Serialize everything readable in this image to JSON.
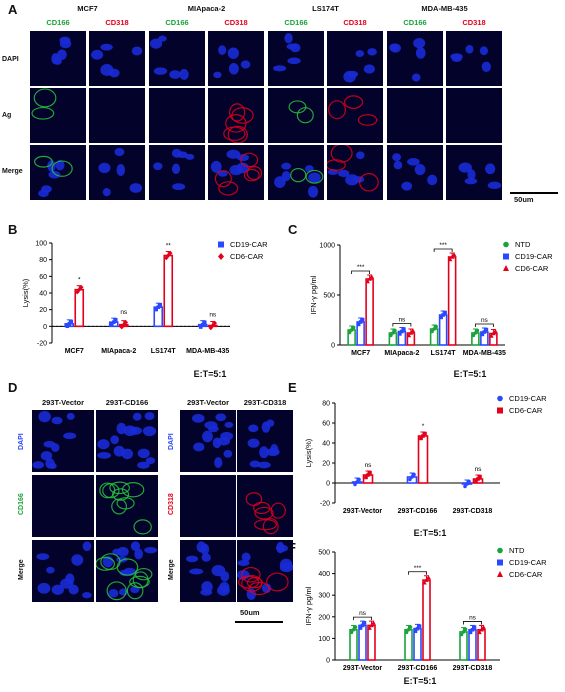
{
  "panel_labels": {
    "A": "A",
    "B": "B",
    "C": "C",
    "D": "D",
    "E": "E",
    "F": "F"
  },
  "panelA": {
    "cell_lines": [
      "MCF7",
      "MIApaca-2",
      "LS174T",
      "MDA-MB-435"
    ],
    "markers": [
      "CD166",
      "CD318"
    ],
    "rows": [
      "DAPI",
      "Ag",
      "Merge"
    ],
    "scale_bar": "50um"
  },
  "panelD": {
    "left_cols": [
      "293T-Vector",
      "293T-CD166"
    ],
    "right_cols": [
      "293T-Vector",
      "293T-CD318"
    ],
    "left_rows": [
      "DAPI",
      "CD166",
      "Merge"
    ],
    "right_rows": [
      "DAPI",
      "CD318",
      "Merge"
    ],
    "scale_bar": "50um"
  },
  "colors": {
    "green": "#1aa33a",
    "red": "#e3001b",
    "blue": "#2a48ff",
    "dapi": "#1a2bd6"
  },
  "chart_data": [
    {
      "id": "B",
      "type": "bar",
      "ylabel": "Lysis(%)",
      "ylim": [
        -20,
        100
      ],
      "yticks": [
        "-20",
        "0",
        "20",
        "40",
        "60",
        "80",
        "100"
      ],
      "categories": [
        "MCF7",
        "MIApaca-2",
        "LS174T",
        "MDA-MB-435"
      ],
      "series": [
        {
          "name": "CD19-CAR",
          "values": [
            3,
            5,
            23,
            2
          ]
        },
        {
          "name": "CD6-CAR",
          "values": [
            44,
            2,
            85,
            1
          ]
        }
      ],
      "annotations": [
        "*",
        "ns",
        "**",
        "ns"
      ],
      "footer": "E:T=5:1"
    },
    {
      "id": "C",
      "type": "bar",
      "ylabel": "IFN-γ pg/ml",
      "ylim": [
        0,
        1000
      ],
      "yticks": [
        "0",
        "500",
        "1000"
      ],
      "categories": [
        "MCF7",
        "MIApaca-2",
        "LS174T",
        "MDA-MB-435"
      ],
      "series": [
        {
          "name": "NTD",
          "values": [
            150,
            120,
            160,
            120
          ]
        },
        {
          "name": "CD19-CAR",
          "values": [
            230,
            135,
            300,
            130
          ]
        },
        {
          "name": "CD6-CAR",
          "values": [
            660,
            120,
            880,
            115
          ]
        }
      ],
      "annotations": [
        "***",
        "ns",
        "***",
        "ns"
      ],
      "footer": "E:T=5:1"
    },
    {
      "id": "E",
      "type": "bar",
      "ylabel": "Lysis(%)",
      "ylim": [
        -20,
        80
      ],
      "yticks": [
        "-20",
        "0",
        "20",
        "40",
        "60",
        "80"
      ],
      "categories": [
        "293T-Vector",
        "293T-CD166",
        "293T-CD318"
      ],
      "series": [
        {
          "name": "CD19-CAR",
          "values": [
            1,
            6,
            -1
          ]
        },
        {
          "name": "CD6-CAR",
          "values": [
            8,
            47,
            4
          ]
        }
      ],
      "annotations": [
        "ns",
        "*",
        "ns"
      ],
      "footer": ""
    },
    {
      "id": "F",
      "type": "bar",
      "ylabel": "IFN-γ pg/ml",
      "ylim": [
        0,
        500
      ],
      "yticks": [
        "0",
        "100",
        "200",
        "300",
        "400",
        "500"
      ],
      "categories": [
        "293T-Vector",
        "293T-CD166",
        "293T-CD318"
      ],
      "series": [
        {
          "name": "NTD",
          "values": [
            140,
            140,
            130
          ]
        },
        {
          "name": "CD19-CAR",
          "values": [
            160,
            145,
            140
          ]
        },
        {
          "name": "CD6-CAR",
          "values": [
            160,
            370,
            140
          ]
        }
      ],
      "annotations": [
        "ns",
        "***",
        "ns"
      ],
      "footer": "E:T=5:1"
    }
  ],
  "footer_mid": "E:T=5:1"
}
